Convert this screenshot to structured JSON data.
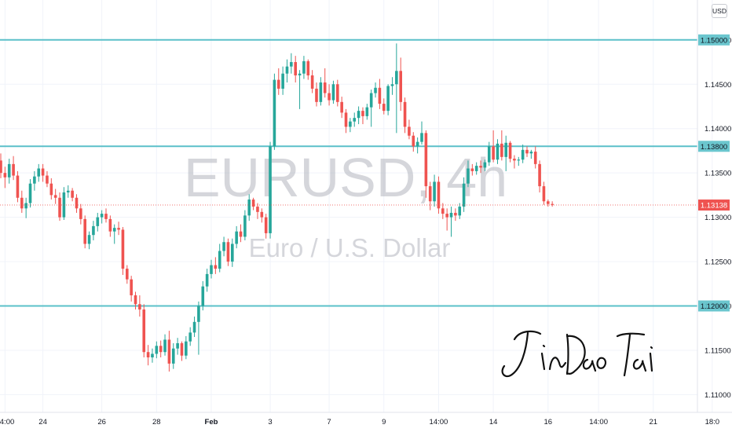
{
  "chart_data": {
    "type": "candlestick",
    "title": "EURUSD, 4h",
    "subtitle": "Euro / U.S. Dollar",
    "currency": "USD",
    "ylim": [
      1.108,
      1.1545
    ],
    "y_ticks": [
      "1.11000",
      "1.11500",
      "1.12000",
      "1.12500",
      "1.13000",
      "1.13500",
      "1.14000",
      "1.14500",
      "1.15000"
    ],
    "x_ticks": [
      {
        "label": "14:00",
        "bar": 1,
        "bold": false
      },
      {
        "label": "24",
        "bar": 10,
        "bold": false
      },
      {
        "label": "26",
        "bar": 24,
        "bold": false
      },
      {
        "label": "28",
        "bar": 37,
        "bold": false
      },
      {
        "label": "Feb",
        "bar": 50,
        "bold": true
      },
      {
        "label": "3",
        "bar": 64,
        "bold": false
      },
      {
        "label": "7",
        "bar": 78,
        "bold": false
      },
      {
        "label": "9",
        "bar": 91,
        "bold": false
      },
      {
        "label": "14:00",
        "bar": 104,
        "bold": false
      },
      {
        "label": "14",
        "bar": 117,
        "bold": false
      },
      {
        "label": "16",
        "bar": 130,
        "bold": false
      },
      {
        "label": "14:00",
        "bar": 142,
        "bold": false
      },
      {
        "label": "21",
        "bar": 155,
        "bold": false
      },
      {
        "label": "18:0",
        "bar": 169,
        "bold": false
      }
    ],
    "levels": [
      {
        "value": 1.15,
        "label": "1.15000"
      },
      {
        "value": 1.138,
        "label": "1.13800"
      },
      {
        "value": 1.12,
        "label": "1.12000"
      }
    ],
    "current_price": {
      "value": 1.13138,
      "label": "1.13138"
    },
    "signature": "JinDaoTai",
    "colors": {
      "up": "#26a69a",
      "down": "#ef5350",
      "level": "#5bc0c9",
      "price_line": "#ef5350"
    },
    "candles": [
      [
        1.1364,
        1.1372,
        1.1344,
        1.135
      ],
      [
        1.135,
        1.1357,
        1.1333,
        1.1345
      ],
      [
        1.1345,
        1.1366,
        1.1338,
        1.136
      ],
      [
        1.136,
        1.1369,
        1.1342,
        1.1347
      ],
      [
        1.1347,
        1.1352,
        1.1317,
        1.1322
      ],
      [
        1.1322,
        1.133,
        1.1305,
        1.131
      ],
      [
        1.131,
        1.1322,
        1.1299,
        1.1316
      ],
      [
        1.1316,
        1.1343,
        1.1311,
        1.1338
      ],
      [
        1.1338,
        1.1352,
        1.133,
        1.1346
      ],
      [
        1.1346,
        1.136,
        1.134,
        1.1355
      ],
      [
        1.1355,
        1.136,
        1.134,
        1.1347
      ],
      [
        1.1347,
        1.1352,
        1.1334,
        1.1338
      ],
      [
        1.1338,
        1.1344,
        1.132,
        1.1325
      ],
      [
        1.1325,
        1.1332,
        1.1315,
        1.1322
      ],
      [
        1.1322,
        1.1328,
        1.1296,
        1.13
      ],
      [
        1.13,
        1.1334,
        1.1297,
        1.1328
      ],
      [
        1.1328,
        1.1336,
        1.1322,
        1.133
      ],
      [
        1.133,
        1.1333,
        1.1318,
        1.1322
      ],
      [
        1.1322,
        1.1326,
        1.1305,
        1.131
      ],
      [
        1.131,
        1.1315,
        1.1292,
        1.1298
      ],
      [
        1.1298,
        1.1302,
        1.1265,
        1.127
      ],
      [
        1.127,
        1.1284,
        1.1264,
        1.128
      ],
      [
        1.128,
        1.1296,
        1.1274,
        1.129
      ],
      [
        1.129,
        1.1305,
        1.1284,
        1.13
      ],
      [
        1.13,
        1.1308,
        1.1293,
        1.1304
      ],
      [
        1.1304,
        1.131,
        1.1294,
        1.1298
      ],
      [
        1.1298,
        1.1302,
        1.1278,
        1.1284
      ],
      [
        1.1284,
        1.1292,
        1.127,
        1.1288
      ],
      [
        1.1288,
        1.1295,
        1.128,
        1.1286
      ],
      [
        1.1286,
        1.1289,
        1.1235,
        1.1242
      ],
      [
        1.1242,
        1.1246,
        1.1225,
        1.123
      ],
      [
        1.123,
        1.1234,
        1.1205,
        1.1212
      ],
      [
        1.1212,
        1.1216,
        1.1196,
        1.1202
      ],
      [
        1.1202,
        1.1212,
        1.1188,
        1.1196
      ],
      [
        1.1196,
        1.1202,
        1.1142,
        1.1148
      ],
      [
        1.1148,
        1.1156,
        1.1133,
        1.1142
      ],
      [
        1.1142,
        1.1152,
        1.1136,
        1.1146
      ],
      [
        1.1146,
        1.116,
        1.1141,
        1.1155
      ],
      [
        1.1155,
        1.1161,
        1.1142,
        1.1148
      ],
      [
        1.1148,
        1.1168,
        1.1144,
        1.1162
      ],
      [
        1.1162,
        1.1172,
        1.1126,
        1.1135
      ],
      [
        1.1135,
        1.1158,
        1.1129,
        1.1152
      ],
      [
        1.1152,
        1.1164,
        1.1145,
        1.1158
      ],
      [
        1.1158,
        1.116,
        1.1138,
        1.1144
      ],
      [
        1.1144,
        1.1166,
        1.114,
        1.116
      ],
      [
        1.116,
        1.1176,
        1.1155,
        1.117
      ],
      [
        1.117,
        1.1188,
        1.1165,
        1.1182
      ],
      [
        1.1182,
        1.1205,
        1.1145,
        1.12
      ],
      [
        1.12,
        1.1228,
        1.1195,
        1.1222
      ],
      [
        1.1222,
        1.1242,
        1.1216,
        1.1236
      ],
      [
        1.1236,
        1.1252,
        1.1231,
        1.1246
      ],
      [
        1.1246,
        1.1255,
        1.1236,
        1.1242
      ],
      [
        1.1242,
        1.127,
        1.1238,
        1.1262
      ],
      [
        1.1262,
        1.1278,
        1.1256,
        1.1272
      ],
      [
        1.1272,
        1.1276,
        1.1245,
        1.125
      ],
      [
        1.125,
        1.1276,
        1.1244,
        1.127
      ],
      [
        1.127,
        1.129,
        1.1265,
        1.1284
      ],
      [
        1.1284,
        1.1292,
        1.1272,
        1.1278
      ],
      [
        1.1278,
        1.1308,
        1.1274,
        1.1302
      ],
      [
        1.1302,
        1.1326,
        1.1296,
        1.132
      ],
      [
        1.132,
        1.1322,
        1.1308,
        1.1312
      ],
      [
        1.1312,
        1.1316,
        1.1298,
        1.1306
      ],
      [
        1.1306,
        1.131,
        1.1294,
        1.13
      ],
      [
        1.13,
        1.1304,
        1.1276,
        1.1282
      ],
      [
        1.1282,
        1.1385,
        1.1276,
        1.138
      ],
      [
        1.138,
        1.1462,
        1.1376,
        1.1455
      ],
      [
        1.1455,
        1.1468,
        1.1438,
        1.1445
      ],
      [
        1.1445,
        1.147,
        1.1438,
        1.1462
      ],
      [
        1.1462,
        1.1478,
        1.1452,
        1.147
      ],
      [
        1.147,
        1.1485,
        1.1462,
        1.1475
      ],
      [
        1.1475,
        1.1482,
        1.1452,
        1.146
      ],
      [
        1.146,
        1.1466,
        1.1422,
        1.1462
      ],
      [
        1.1462,
        1.1482,
        1.1456,
        1.1476
      ],
      [
        1.1476,
        1.1478,
        1.1455,
        1.146
      ],
      [
        1.146,
        1.1466,
        1.144,
        1.1445
      ],
      [
        1.1445,
        1.1452,
        1.1425,
        1.143
      ],
      [
        1.143,
        1.1458,
        1.1426,
        1.1452
      ],
      [
        1.1452,
        1.1468,
        1.1435,
        1.144
      ],
      [
        1.144,
        1.145,
        1.1426,
        1.1432
      ],
      [
        1.1432,
        1.1454,
        1.1428,
        1.145
      ],
      [
        1.145,
        1.1455,
        1.1425,
        1.143
      ],
      [
        1.143,
        1.1436,
        1.1412,
        1.1418
      ],
      [
        1.1418,
        1.1422,
        1.1395,
        1.1402
      ],
      [
        1.1402,
        1.1412,
        1.1396,
        1.1408
      ],
      [
        1.1408,
        1.1418,
        1.1402,
        1.1412
      ],
      [
        1.1412,
        1.1425,
        1.1405,
        1.142
      ],
      [
        1.142,
        1.1424,
        1.1405,
        1.1414
      ],
      [
        1.1414,
        1.1428,
        1.141,
        1.1424
      ],
      [
        1.1424,
        1.1444,
        1.1402,
        1.144
      ],
      [
        1.144,
        1.1452,
        1.1435,
        1.1446
      ],
      [
        1.1446,
        1.1456,
        1.1422,
        1.1428
      ],
      [
        1.1428,
        1.1434,
        1.1416,
        1.142
      ],
      [
        1.142,
        1.145,
        1.1415,
        1.1448
      ],
      [
        1.1448,
        1.1458,
        1.1438,
        1.145
      ],
      [
        1.145,
        1.1496,
        1.1395,
        1.1465
      ],
      [
        1.1465,
        1.148,
        1.142,
        1.143
      ],
      [
        1.143,
        1.1435,
        1.1395,
        1.1402
      ],
      [
        1.1402,
        1.141,
        1.1388,
        1.1392
      ],
      [
        1.1392,
        1.1396,
        1.1374,
        1.138
      ],
      [
        1.138,
        1.139,
        1.1372,
        1.1385
      ],
      [
        1.1385,
        1.1408,
        1.1382,
        1.1395
      ],
      [
        1.1395,
        1.1398,
        1.1322,
        1.1335
      ],
      [
        1.1335,
        1.134,
        1.1308,
        1.1318
      ],
      [
        1.1318,
        1.1348,
        1.1312,
        1.134
      ],
      [
        1.134,
        1.1346,
        1.1304,
        1.131
      ],
      [
        1.131,
        1.1316,
        1.1298,
        1.1304
      ],
      [
        1.1304,
        1.131,
        1.1285,
        1.13
      ],
      [
        1.13,
        1.1312,
        1.1278,
        1.1305
      ],
      [
        1.1305,
        1.131,
        1.1296,
        1.1302
      ],
      [
        1.1302,
        1.1316,
        1.1298,
        1.1312
      ],
      [
        1.1312,
        1.1345,
        1.1306,
        1.1338
      ],
      [
        1.1338,
        1.1364,
        1.1334,
        1.1355
      ],
      [
        1.1355,
        1.136,
        1.1347,
        1.1352
      ],
      [
        1.1352,
        1.1362,
        1.1348,
        1.1358
      ],
      [
        1.1358,
        1.1364,
        1.135,
        1.1356
      ],
      [
        1.1356,
        1.1365,
        1.1352,
        1.1362
      ],
      [
        1.1362,
        1.1385,
        1.1358,
        1.138
      ],
      [
        1.138,
        1.1398,
        1.1362,
        1.1365
      ],
      [
        1.1365,
        1.1388,
        1.136,
        1.1383
      ],
      [
        1.1383,
        1.1398,
        1.1364,
        1.1368
      ],
      [
        1.1368,
        1.1392,
        1.1352,
        1.1384
      ],
      [
        1.1384,
        1.1386,
        1.1362,
        1.1366
      ],
      [
        1.1366,
        1.137,
        1.1355,
        1.1364
      ],
      [
        1.1364,
        1.1368,
        1.1358,
        1.1365
      ],
      [
        1.1365,
        1.1382,
        1.1361,
        1.1376
      ],
      [
        1.1376,
        1.138,
        1.1368,
        1.1372
      ],
      [
        1.1372,
        1.1376,
        1.1366,
        1.1374
      ],
      [
        1.1374,
        1.138,
        1.1355,
        1.136
      ],
      [
        1.136,
        1.1364,
        1.1328,
        1.1335
      ],
      [
        1.1335,
        1.134,
        1.1314,
        1.1318
      ],
      [
        1.1318,
        1.132,
        1.1312,
        1.1315
      ],
      [
        1.1315,
        1.1318,
        1.1312,
        1.1314
      ]
    ]
  }
}
